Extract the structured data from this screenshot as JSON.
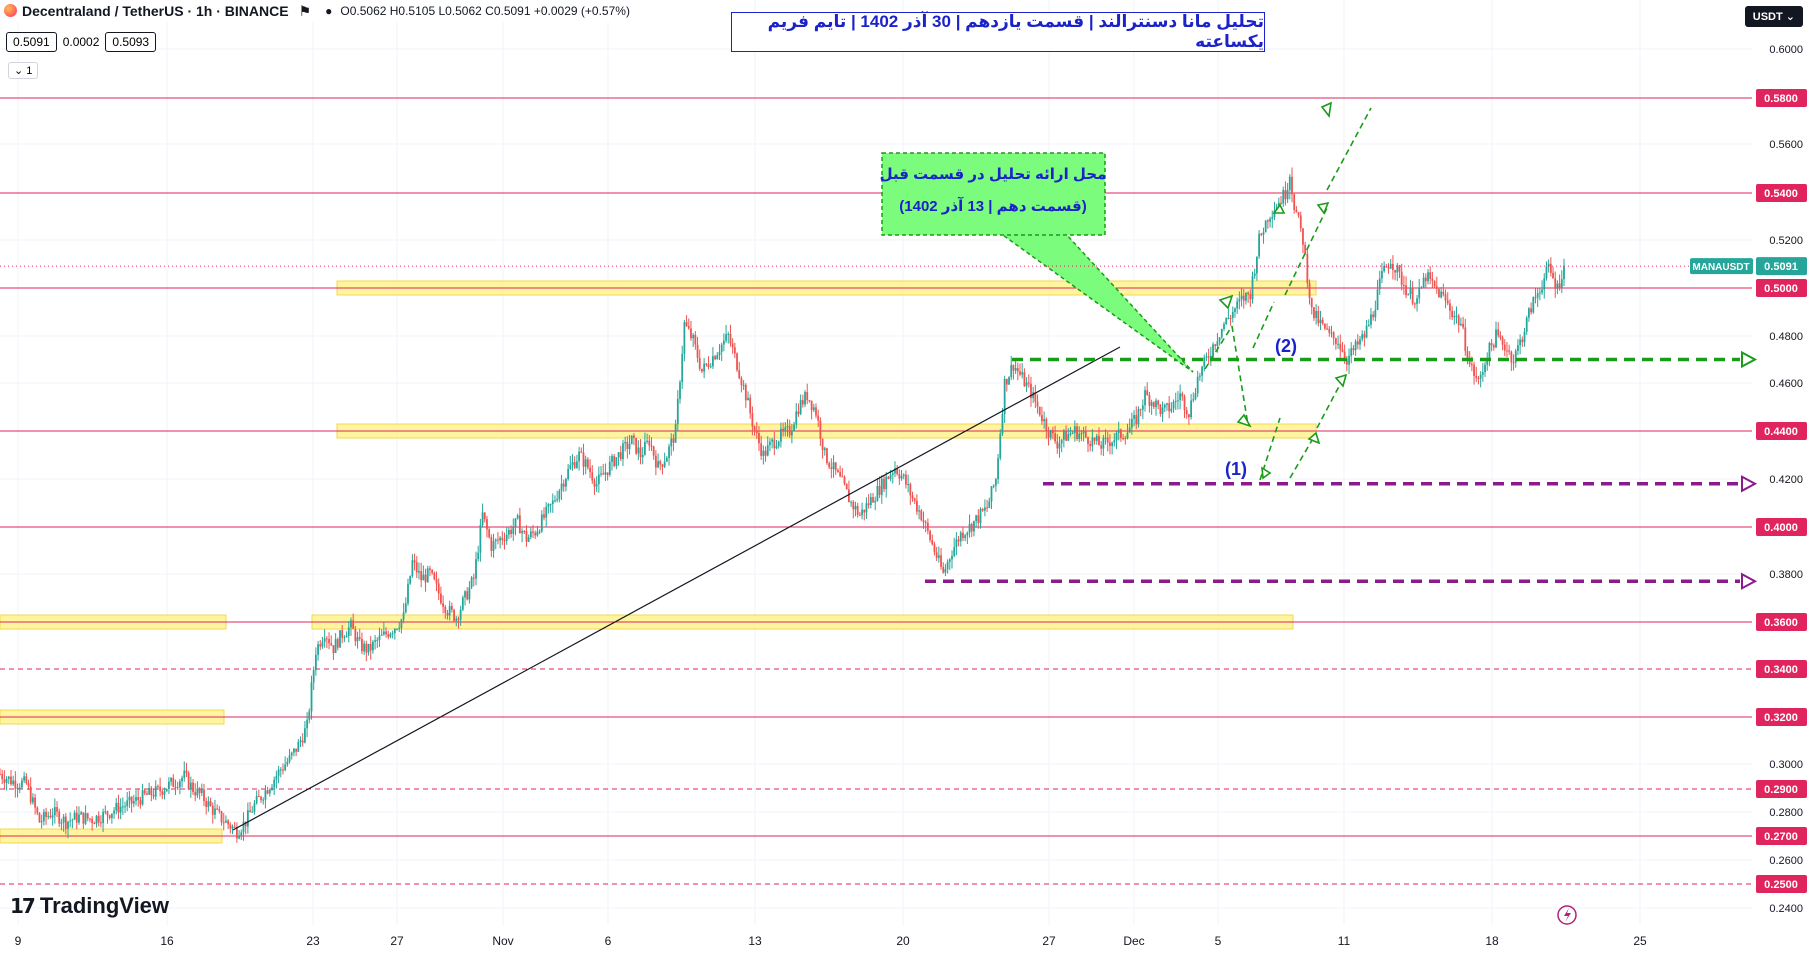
{
  "header": {
    "symbol": "Decentraland / TetherUS · 1h · BINANCE",
    "ohlc": "O0.5062  H0.5105  L0.5062  C0.5091  +0.0029 (+0.57%)",
    "bid": "0.5091",
    "spread": "0.0002",
    "ask": "0.5093",
    "indicator_count": "1"
  },
  "currency_button": "USDT",
  "title": "تحلیل مانا دسنترالند | قسمت یازدهم | 30 آذر 1402 | تایم فریم یکساعته",
  "callout": {
    "line1": "محل ارائه تحلیل در قسمت قبل",
    "line2": "(قسمت دهم | 13 آذر 1402)"
  },
  "wave_labels": [
    "(1)",
    "(2)"
  ],
  "watermark": "TradingView",
  "chart_data": {
    "type": "candlestick",
    "symbol": "MANAUSDT",
    "last_price": "0.5091",
    "ylim": [
      0.24,
      0.62
    ],
    "y_ticks": [
      "0.6000",
      "0.5600",
      "0.5200",
      "0.4800",
      "0.4600",
      "0.4200",
      "0.3800",
      "0.3000",
      "0.2800",
      "0.2600",
      "0.2400"
    ],
    "x_ticks": [
      "9",
      "16",
      "23",
      "27",
      "Nov",
      "6",
      "13",
      "20",
      "27",
      "Dec",
      "5",
      "11",
      "18",
      "25"
    ],
    "levels": [
      {
        "price": 0.58,
        "label": "0.5800",
        "style": "solid"
      },
      {
        "price": 0.54,
        "label": "0.5400",
        "style": "solid"
      },
      {
        "price": 0.5,
        "label": "0.5000",
        "style": "solid"
      },
      {
        "price": 0.44,
        "label": "0.4400",
        "style": "solid"
      },
      {
        "price": 0.4,
        "label": "0.4000",
        "style": "solid"
      },
      {
        "price": 0.36,
        "label": "0.3600",
        "style": "solid"
      },
      {
        "price": 0.34,
        "label": "0.3400",
        "style": "dashed"
      },
      {
        "price": 0.32,
        "label": "0.3200",
        "style": "solid"
      },
      {
        "price": 0.29,
        "label": "0.2900",
        "style": "dashed"
      },
      {
        "price": 0.27,
        "label": "0.2700",
        "style": "solid"
      },
      {
        "price": 0.25,
        "label": "0.2500",
        "style": "dashed"
      }
    ],
    "zones": [
      0.5,
      0.44,
      0.36,
      0.32,
      0.27
    ],
    "targets": [
      {
        "price": 0.47,
        "color": "#1a9c1a"
      },
      {
        "price": 0.418,
        "color": "#8b1a8b"
      },
      {
        "price": 0.377,
        "color": "#8b1a8b"
      }
    ],
    "path": [
      [
        0,
        0.296
      ],
      [
        6,
        0.293
      ],
      [
        12,
        0.292
      ],
      [
        18,
        0.276
      ],
      [
        24,
        0.28
      ],
      [
        30,
        0.276
      ],
      [
        36,
        0.278
      ],
      [
        42,
        0.277
      ],
      [
        48,
        0.279
      ],
      [
        54,
        0.282
      ],
      [
        60,
        0.284
      ],
      [
        66,
        0.287
      ],
      [
        72,
        0.289
      ],
      [
        78,
        0.292
      ],
      [
        84,
        0.295
      ],
      [
        88,
        0.29
      ],
      [
        92,
        0.287
      ],
      [
        96,
        0.282
      ],
      [
        100,
        0.278
      ],
      [
        104,
        0.275
      ],
      [
        108,
        0.272
      ],
      [
        112,
        0.276
      ],
      [
        116,
        0.283
      ],
      [
        120,
        0.288
      ],
      [
        124,
        0.293
      ],
      [
        128,
        0.298
      ],
      [
        132,
        0.302
      ],
      [
        136,
        0.308
      ],
      [
        140,
        0.316
      ],
      [
        144,
        0.348
      ],
      [
        148,
        0.356
      ],
      [
        152,
        0.349
      ],
      [
        156,
        0.355
      ],
      [
        160,
        0.358
      ],
      [
        164,
        0.35
      ],
      [
        168,
        0.348
      ],
      [
        172,
        0.352
      ],
      [
        176,
        0.355
      ],
      [
        180,
        0.358
      ],
      [
        184,
        0.362
      ],
      [
        188,
        0.385
      ],
      [
        192,
        0.378
      ],
      [
        196,
        0.38
      ],
      [
        200,
        0.372
      ],
      [
        204,
        0.365
      ],
      [
        208,
        0.362
      ],
      [
        212,
        0.37
      ],
      [
        216,
        0.378
      ],
      [
        220,
        0.405
      ],
      [
        224,
        0.392
      ],
      [
        228,
        0.395
      ],
      [
        232,
        0.398
      ],
      [
        236,
        0.402
      ],
      [
        240,
        0.395
      ],
      [
        244,
        0.398
      ],
      [
        248,
        0.404
      ],
      [
        252,
        0.41
      ],
      [
        256,
        0.418
      ],
      [
        260,
        0.425
      ],
      [
        264,
        0.43
      ],
      [
        268,
        0.425
      ],
      [
        272,
        0.418
      ],
      [
        276,
        0.423
      ],
      [
        280,
        0.428
      ],
      [
        284,
        0.432
      ],
      [
        288,
        0.436
      ],
      [
        292,
        0.43
      ],
      [
        296,
        0.436
      ],
      [
        300,
        0.425
      ],
      [
        304,
        0.43
      ],
      [
        308,
        0.44
      ],
      [
        312,
        0.485
      ],
      [
        316,
        0.478
      ],
      [
        320,
        0.465
      ],
      [
        324,
        0.47
      ],
      [
        328,
        0.475
      ],
      [
        332,
        0.48
      ],
      [
        336,
        0.468
      ],
      [
        340,
        0.455
      ],
      [
        344,
        0.44
      ],
      [
        348,
        0.43
      ],
      [
        352,
        0.435
      ],
      [
        356,
        0.438
      ],
      [
        360,
        0.44
      ],
      [
        364,
        0.45
      ],
      [
        368,
        0.455
      ],
      [
        372,
        0.448
      ],
      [
        376,
        0.43
      ],
      [
        380,
        0.424
      ],
      [
        384,
        0.418
      ],
      [
        388,
        0.41
      ],
      [
        392,
        0.405
      ],
      [
        396,
        0.41
      ],
      [
        400,
        0.415
      ],
      [
        404,
        0.42
      ],
      [
        408,
        0.425
      ],
      [
        412,
        0.42
      ],
      [
        416,
        0.412
      ],
      [
        420,
        0.405
      ],
      [
        424,
        0.395
      ],
      [
        428,
        0.385
      ],
      [
        430,
        0.38
      ],
      [
        434,
        0.39
      ],
      [
        438,
        0.397
      ],
      [
        442,
        0.4
      ],
      [
        446,
        0.404
      ],
      [
        450,
        0.408
      ],
      [
        454,
        0.42
      ],
      [
        458,
        0.46
      ],
      [
        462,
        0.468
      ],
      [
        466,
        0.462
      ],
      [
        470,
        0.456
      ],
      [
        474,
        0.448
      ],
      [
        478,
        0.44
      ],
      [
        482,
        0.435
      ],
      [
        486,
        0.438
      ],
      [
        490,
        0.44
      ],
      [
        494,
        0.438
      ],
      [
        498,
        0.436
      ],
      [
        502,
        0.434
      ],
      [
        506,
        0.436
      ],
      [
        510,
        0.438
      ],
      [
        514,
        0.44
      ],
      [
        518,
        0.445
      ],
      [
        522,
        0.455
      ],
      [
        526,
        0.452
      ],
      [
        530,
        0.448
      ],
      [
        534,
        0.45
      ],
      [
        538,
        0.455
      ],
      [
        542,
        0.448
      ],
      [
        546,
        0.462
      ],
      [
        550,
        0.47
      ],
      [
        554,
        0.478
      ],
      [
        558,
        0.485
      ],
      [
        562,
        0.49
      ],
      [
        566,
        0.495
      ],
      [
        570,
        0.498
      ],
      [
        574,
        0.52
      ],
      [
        578,
        0.53
      ],
      [
        582,
        0.535
      ],
      [
        586,
        0.54
      ],
      [
        588,
        0.548
      ],
      [
        590,
        0.535
      ],
      [
        594,
        0.52
      ],
      [
        598,
        0.49
      ],
      [
        602,
        0.485
      ],
      [
        606,
        0.48
      ],
      [
        610,
        0.478
      ],
      [
        614,
        0.47
      ],
      [
        618,
        0.475
      ],
      [
        622,
        0.48
      ],
      [
        626,
        0.49
      ],
      [
        630,
        0.505
      ],
      [
        634,
        0.512
      ],
      [
        638,
        0.505
      ],
      [
        642,
        0.498
      ],
      [
        646,
        0.495
      ],
      [
        650,
        0.505
      ],
      [
        654,
        0.5
      ],
      [
        658,
        0.496
      ],
      [
        662,
        0.49
      ],
      [
        666,
        0.485
      ],
      [
        670,
        0.468
      ],
      [
        674,
        0.46
      ],
      [
        678,
        0.472
      ],
      [
        682,
        0.48
      ],
      [
        686,
        0.476
      ],
      [
        690,
        0.47
      ],
      [
        694,
        0.48
      ],
      [
        698,
        0.492
      ],
      [
        702,
        0.5
      ],
      [
        706,
        0.508
      ],
      [
        710,
        0.5
      ],
      [
        713,
        0.509
      ]
    ]
  }
}
